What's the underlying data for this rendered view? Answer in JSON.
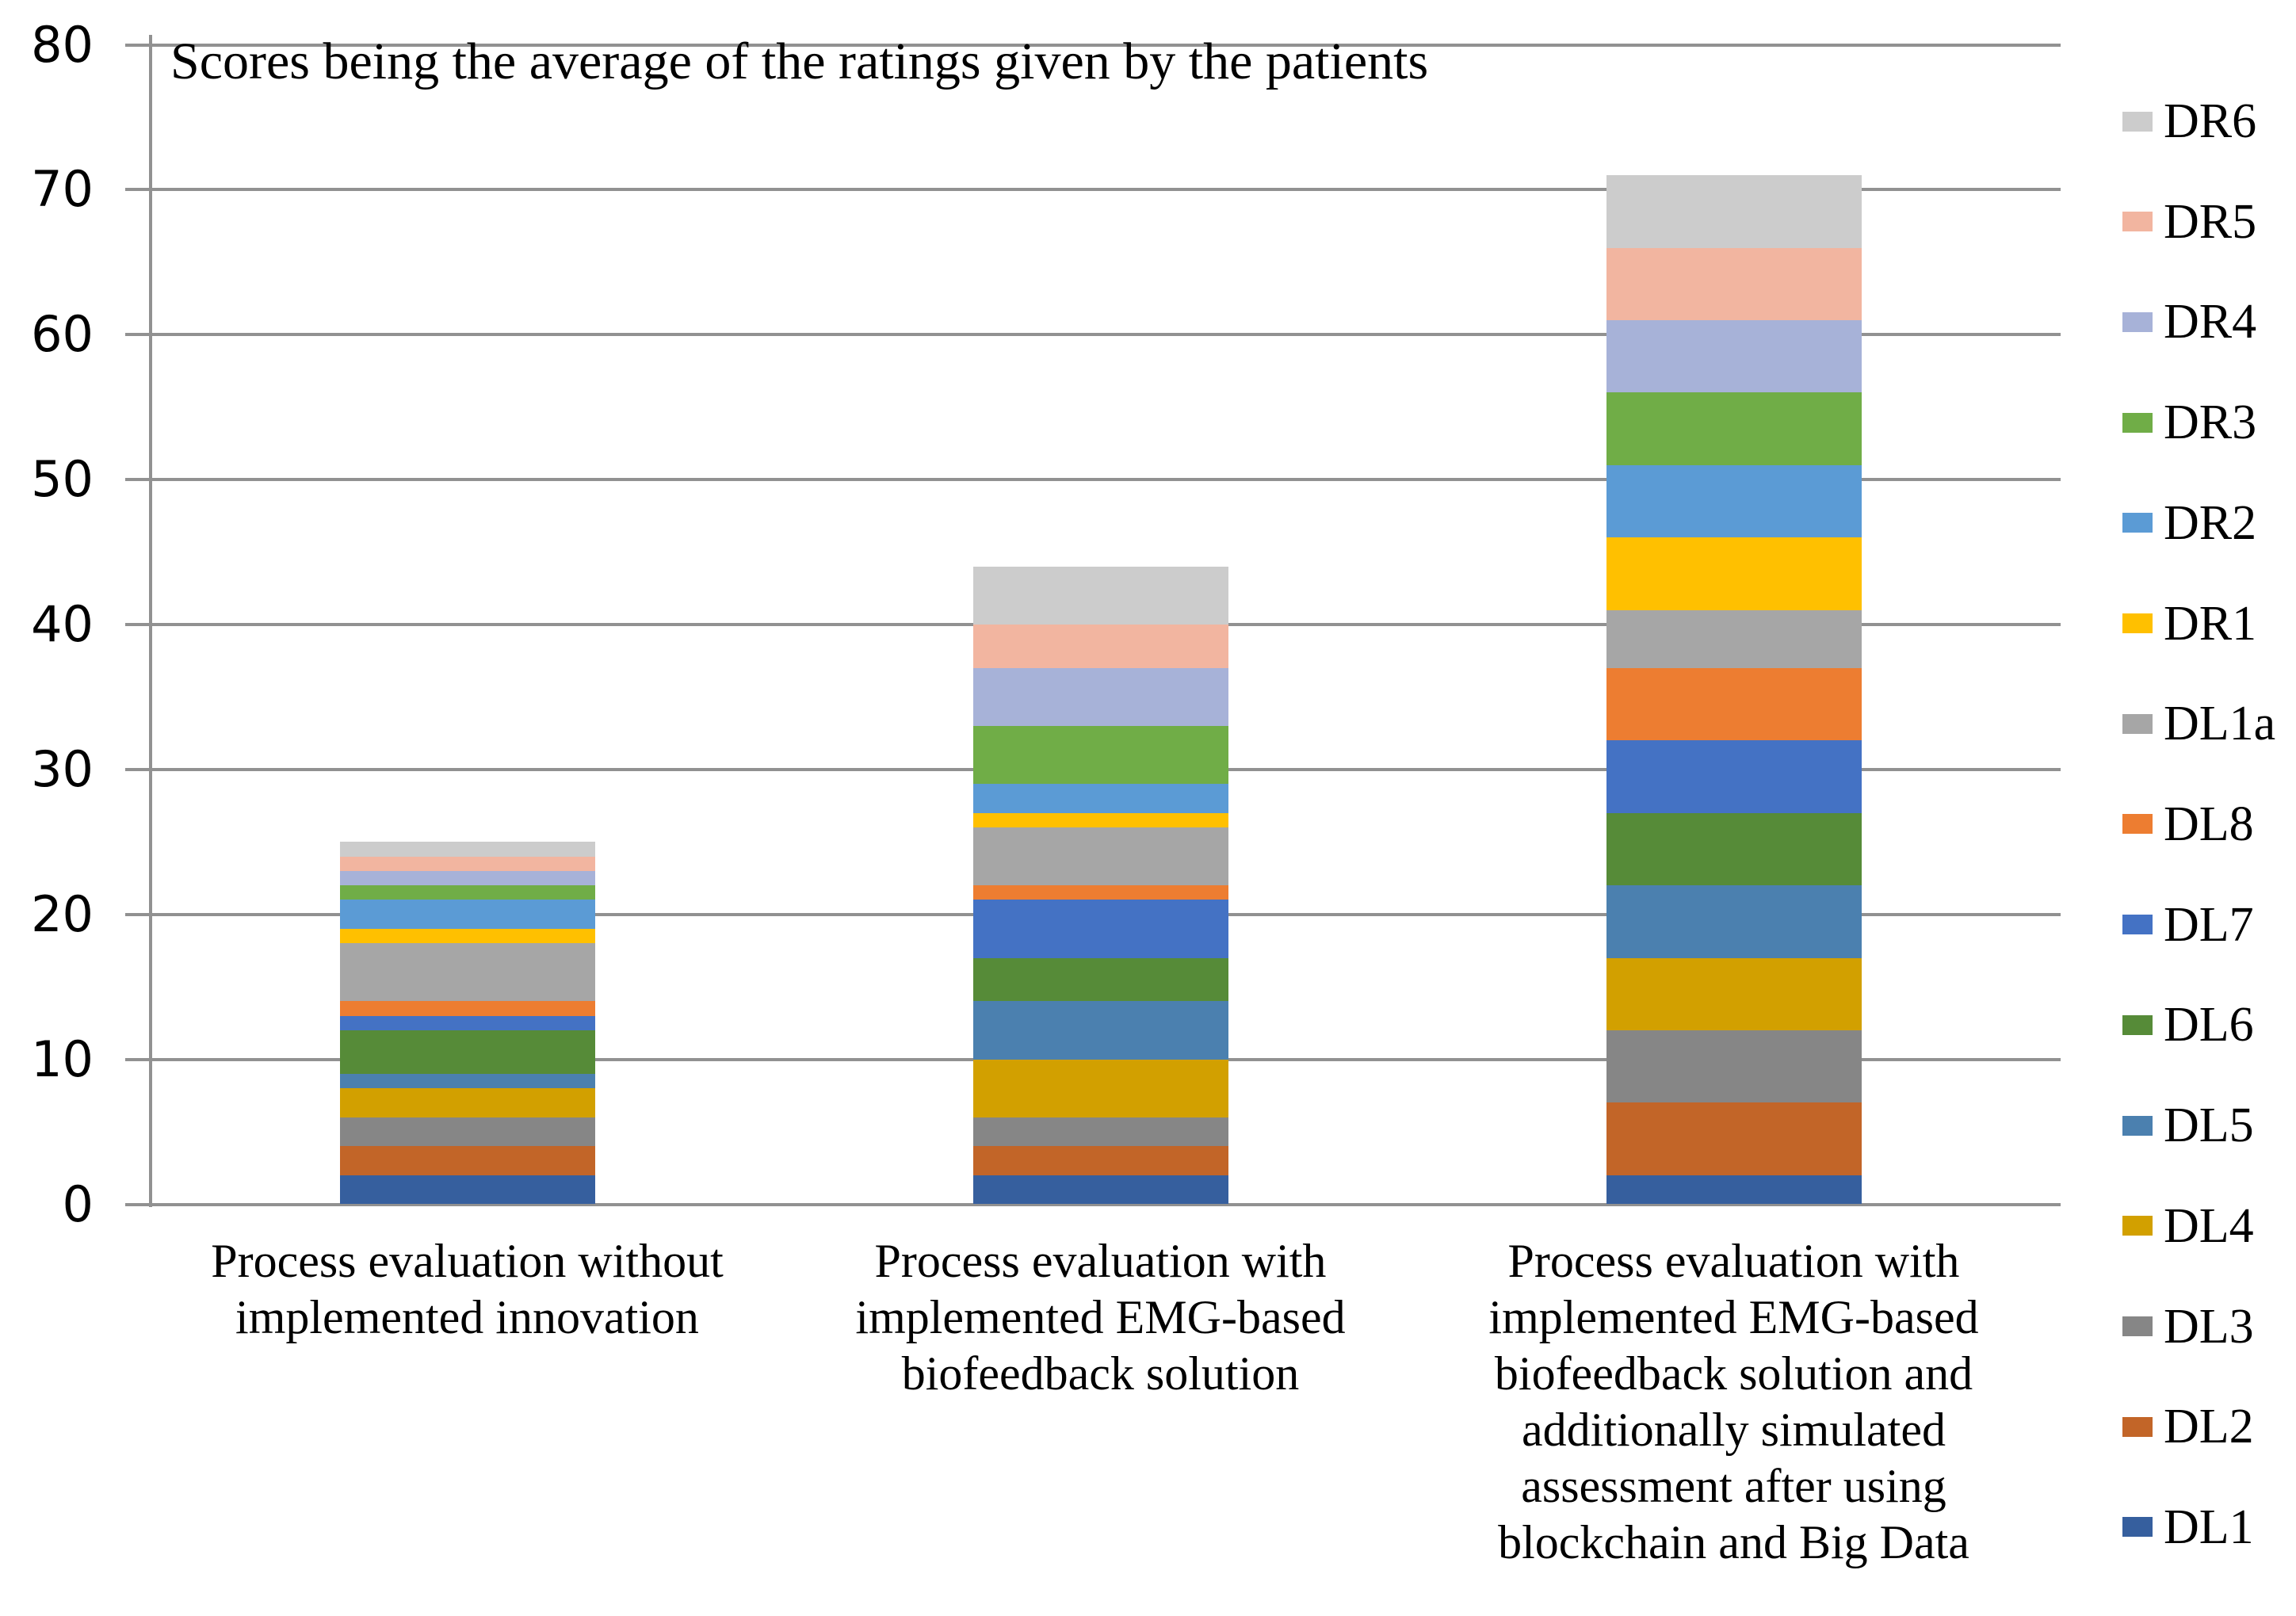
{
  "chart_data": {
    "type": "bar",
    "stacked": true,
    "stack_order": "bottom_to_top",
    "title": "Scores being the average of the ratings given by the patients",
    "grid": true,
    "legend": {
      "position": "right",
      "order_top_to_bottom": [
        "DR6",
        "DR5",
        "DR4",
        "DR3",
        "DR2",
        "DR1",
        "DL1a",
        "DL8",
        "DL7",
        "DL6",
        "DL5",
        "DL4",
        "DL3",
        "DL2",
        "DL1"
      ]
    },
    "y_axis": {
      "min": 0,
      "max": 80,
      "step": 10,
      "tick_labels": [
        "0",
        "10",
        "20",
        "30",
        "40",
        "50",
        "60",
        "70",
        "80"
      ]
    },
    "categories": [
      {
        "label": "Process evaluation without implemented innovation",
        "lines": [
          "Process evaluation without",
          "implemented innovation"
        ]
      },
      {
        "label": "Process evaluation with implemented EMG-based biofeedback solution",
        "lines": [
          "Process evaluation with",
          "implemented EMG-based",
          "biofeedback solution"
        ]
      },
      {
        "label": "Process evaluation with implemented EMG-based biofeedback solution and additionally simulated assessment after using blockchain and Big Data",
        "lines": [
          "Process evaluation with",
          "implemented EMG-based",
          "biofeedback solution and",
          "additionally simulated",
          "assessment after using",
          "blockchain and Big Data"
        ]
      }
    ],
    "series": [
      {
        "name": "DL1",
        "color": "#365F9E",
        "values": [
          2,
          2,
          2
        ]
      },
      {
        "name": "DL2",
        "color": "#C26528",
        "values": [
          2,
          2,
          5
        ]
      },
      {
        "name": "DL3",
        "color": "#868686",
        "values": [
          2,
          2,
          5
        ]
      },
      {
        "name": "DL4",
        "color": "#D2A000",
        "values": [
          2,
          4,
          5
        ]
      },
      {
        "name": "DL5",
        "color": "#4B80AF",
        "values": [
          1,
          4,
          5
        ]
      },
      {
        "name": "DL6",
        "color": "#568B38",
        "values": [
          3,
          3,
          5
        ]
      },
      {
        "name": "DL7",
        "color": "#4472C4",
        "values": [
          1,
          4,
          5
        ]
      },
      {
        "name": "DL8",
        "color": "#ED7D31",
        "values": [
          1,
          1,
          5
        ]
      },
      {
        "name": "DL1a",
        "color": "#A6A6A6",
        "values": [
          4,
          4,
          4
        ]
      },
      {
        "name": "DR1",
        "color": "#FFC000",
        "values": [
          1,
          1,
          5
        ]
      },
      {
        "name": "DR2",
        "color": "#5B9BD5",
        "values": [
          2,
          2,
          5
        ]
      },
      {
        "name": "DR3",
        "color": "#70AD47",
        "values": [
          1,
          4,
          5
        ]
      },
      {
        "name": "DR4",
        "color": "#A7B2D8",
        "values": [
          1,
          4,
          5
        ]
      },
      {
        "name": "DR5",
        "color": "#F2B5A0",
        "values": [
          1,
          3,
          5
        ]
      },
      {
        "name": "DR6",
        "color": "#CCCCCC",
        "values": [
          1,
          4,
          5
        ]
      }
    ]
  },
  "colors": {
    "gridline": "#919191",
    "axis": "#919191",
    "text": "#000000",
    "background": "#FFFFFF"
  }
}
